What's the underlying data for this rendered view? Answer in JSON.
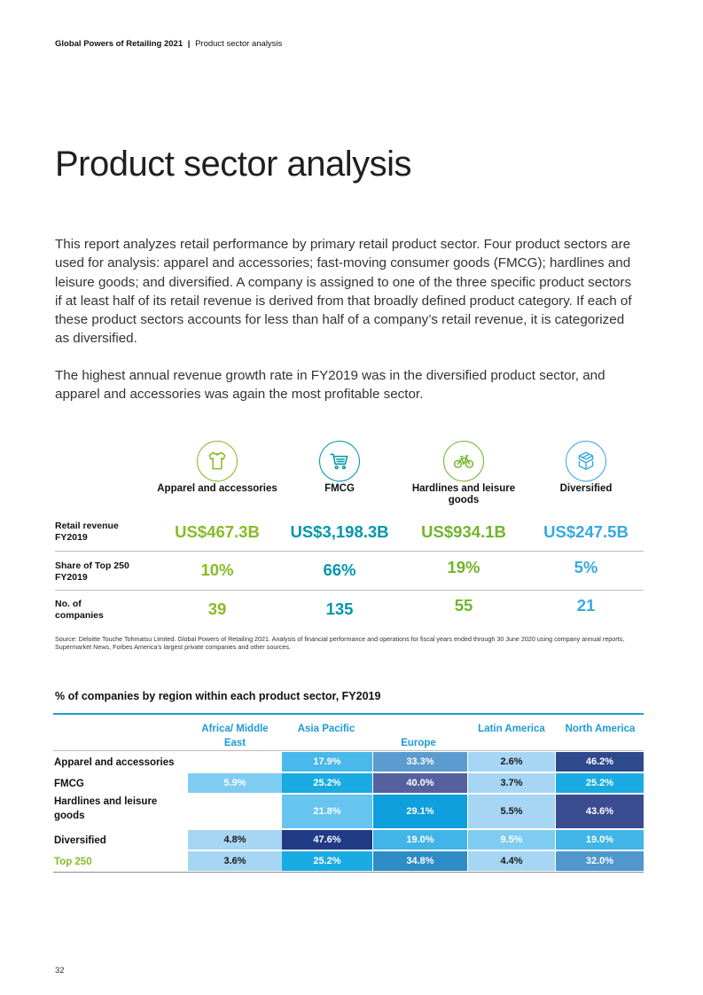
{
  "header": {
    "report": "Global Powers of Retailing 2021",
    "separator": "|",
    "section": "Product sector analysis"
  },
  "title": "Product sector analysis",
  "paragraphs": [
    "This report analyzes retail performance by primary retail product sector. Four product sectors are used for analysis: apparel and accessories; fast-moving consumer goods (FMCG); hardlines and leisure goods; and diversified. A company is assigned to one of the three specific product sectors if at least half of its retail revenue is derived from that broadly defined product category. If each of these product sectors accounts for less than half of a company’s retail revenue, it is categorized as diversified.",
    "The highest annual revenue growth rate in FY2019 was in the diversified product sector, and apparel and accessories was again the most profitable sector."
  ],
  "sectors": {
    "items": [
      {
        "label": "Apparel and accessories",
        "icon": "tshirt-icon",
        "color": "#86bc25",
        "revenue": "US$467.3B",
        "share": "10%",
        "companies": "39"
      },
      {
        "label": "FMCG",
        "icon": "shopping-cart-icon",
        "color": "#0097a9",
        "revenue": "US$3,198.3B",
        "share": "66%",
        "companies": "135"
      },
      {
        "label": "Hardlines and leisure goods",
        "icon": "bicycle-icon",
        "color": "#6fb52c",
        "revenue": "US$934.1B",
        "share": "19%",
        "companies": "55"
      },
      {
        "label": "Diversified",
        "icon": "boxes-icon",
        "color": "#36a9e1",
        "revenue": "US$247.5B",
        "share": "5%",
        "companies": "21"
      }
    ],
    "row_labels": {
      "revenue": "Retail revenue FY2019",
      "share": "Share of Top 250 FY2019",
      "companies": "No. of companies"
    }
  },
  "source": "Source: Deloitte Touche Tohmatsu Limited. Global Powers of Retailing 2021. Analysis of financial performance and operations for fiscal years ended through 30 June 2020 using company annual reports, Supermarket News, Forbes America’s largest private companies and other sources.",
  "region_table": {
    "title": "% of companies by region within each product sector, FY2019",
    "columns": [
      "Africa/ Middle East",
      "Asia Pacific",
      "Europe",
      "Latin America",
      "North America"
    ],
    "rows": [
      {
        "label": "Apparel and accessories",
        "values": [
          "",
          "17.9%",
          "33.3%",
          "2.6%",
          "46.2%"
        ]
      },
      {
        "label": "FMCG",
        "values": [
          "5.9%",
          "25.2%",
          "40.0%",
          "3.7%",
          "25.2%"
        ]
      },
      {
        "label": "Hardlines and leisure goods",
        "values": [
          "",
          "21.8%",
          "29.1%",
          "5.5%",
          "43.6%"
        ]
      },
      {
        "label": "Diversified",
        "values": [
          "4.8%",
          "47.6%",
          "19.0%",
          "9.5%",
          "19.0%"
        ]
      },
      {
        "label": "Top 250",
        "values": [
          "3.6%",
          "25.2%",
          "34.8%",
          "4.4%",
          "32.0%"
        ]
      }
    ],
    "cell_colors": [
      [
        "",
        "#49b8ea",
        "#5b9bd0",
        "#a6d6f3",
        "#2e4a8c"
      ],
      [
        "#7fccf2",
        "#1aabe2",
        "#55609f",
        "#a6d6f3",
        "#1aabe2"
      ],
      [
        "",
        "#66c4ef",
        "#0e9fdc",
        "#a6d6f3",
        "#3a4d91"
      ],
      [
        "#a6d6f3",
        "#223b87",
        "#41b4e8",
        "#7fccf2",
        "#41b4e8"
      ],
      [
        "#a6d6f3",
        "#1aabe2",
        "#2e8cc7",
        "#a6d6f3",
        "#4f97cd"
      ]
    ],
    "top250_color": "#86bc25"
  },
  "page_number": "32"
}
